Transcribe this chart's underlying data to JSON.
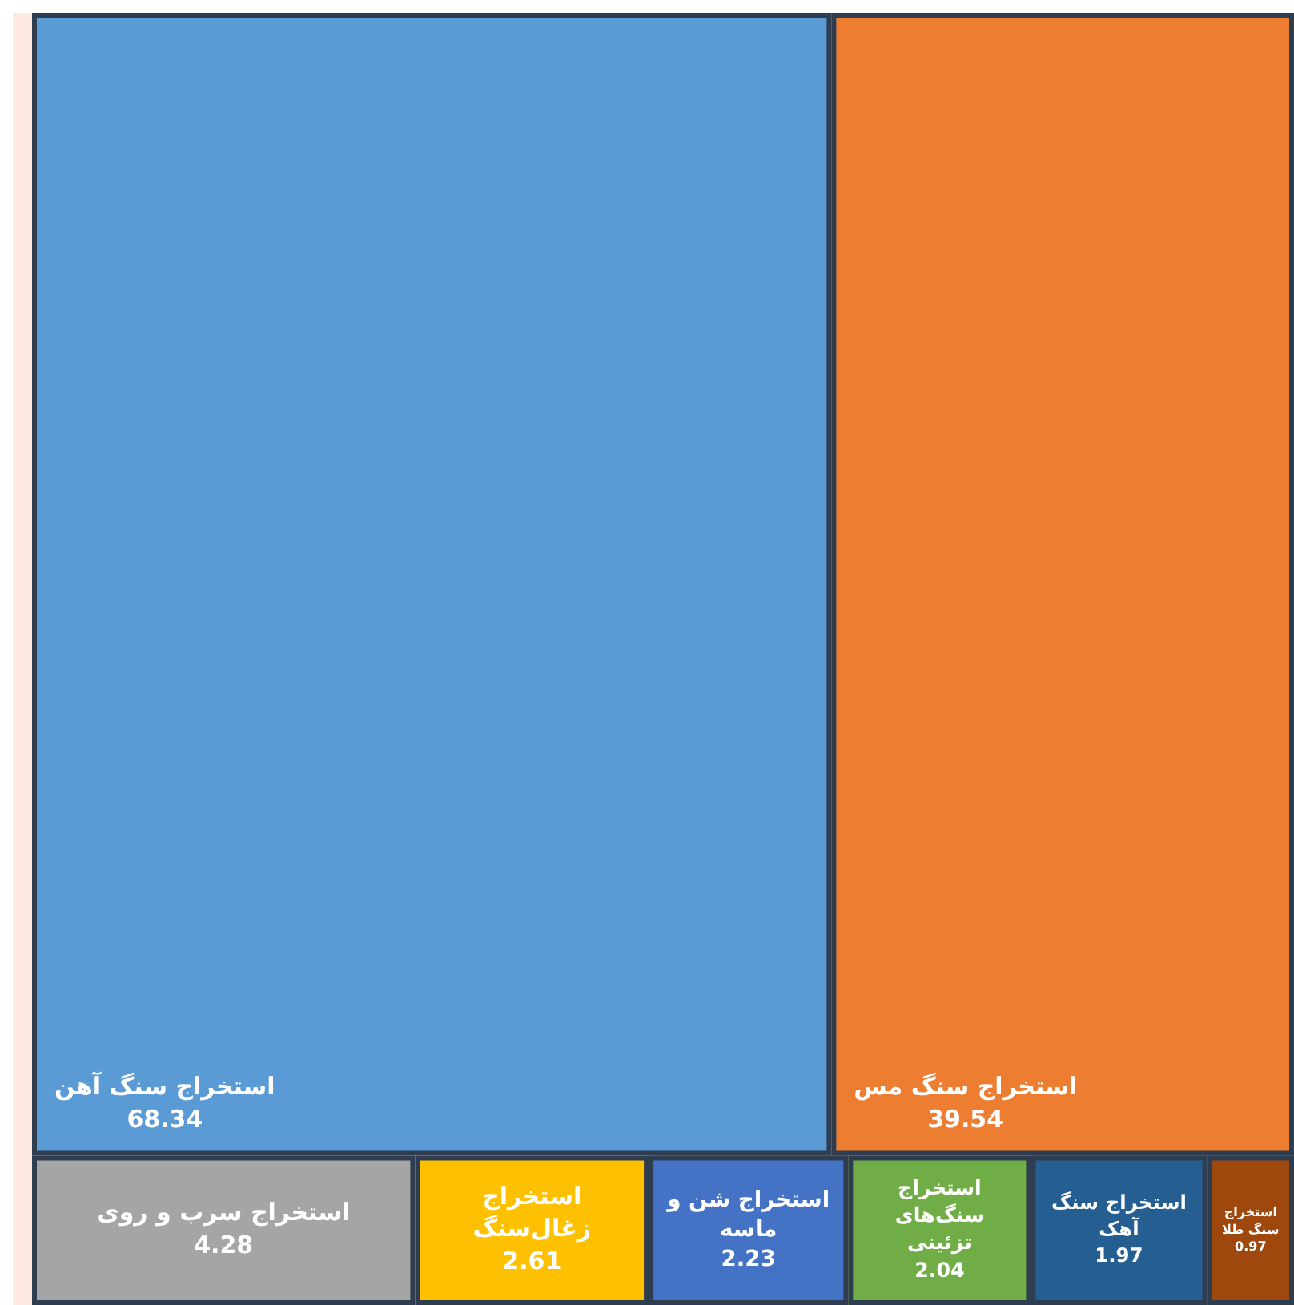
{
  "chart_data": {
    "type": "other",
    "categories": [
      "استخراج سنگ آهن",
      "استخراج سنگ مس",
      "استخراج سرب و روی",
      "استخراج زغال‌سنگ",
      "استخراج شن و ماسه",
      "استخراج سنگ‌های تزئینی",
      "استخراج سنگ آهک",
      "استخراج سنگ طلا"
    ],
    "values": [
      68.34,
      39.54,
      4.28,
      2.61,
      2.23,
      2.04,
      1.97,
      0.97
    ],
    "colors": [
      "#5b9bd5",
      "#ed7d31",
      "#a5a5a5",
      "#ffc000",
      "#4472c4",
      "#70ad47",
      "#255e91",
      "#9e480e"
    ],
    "data_labels": true
  }
}
